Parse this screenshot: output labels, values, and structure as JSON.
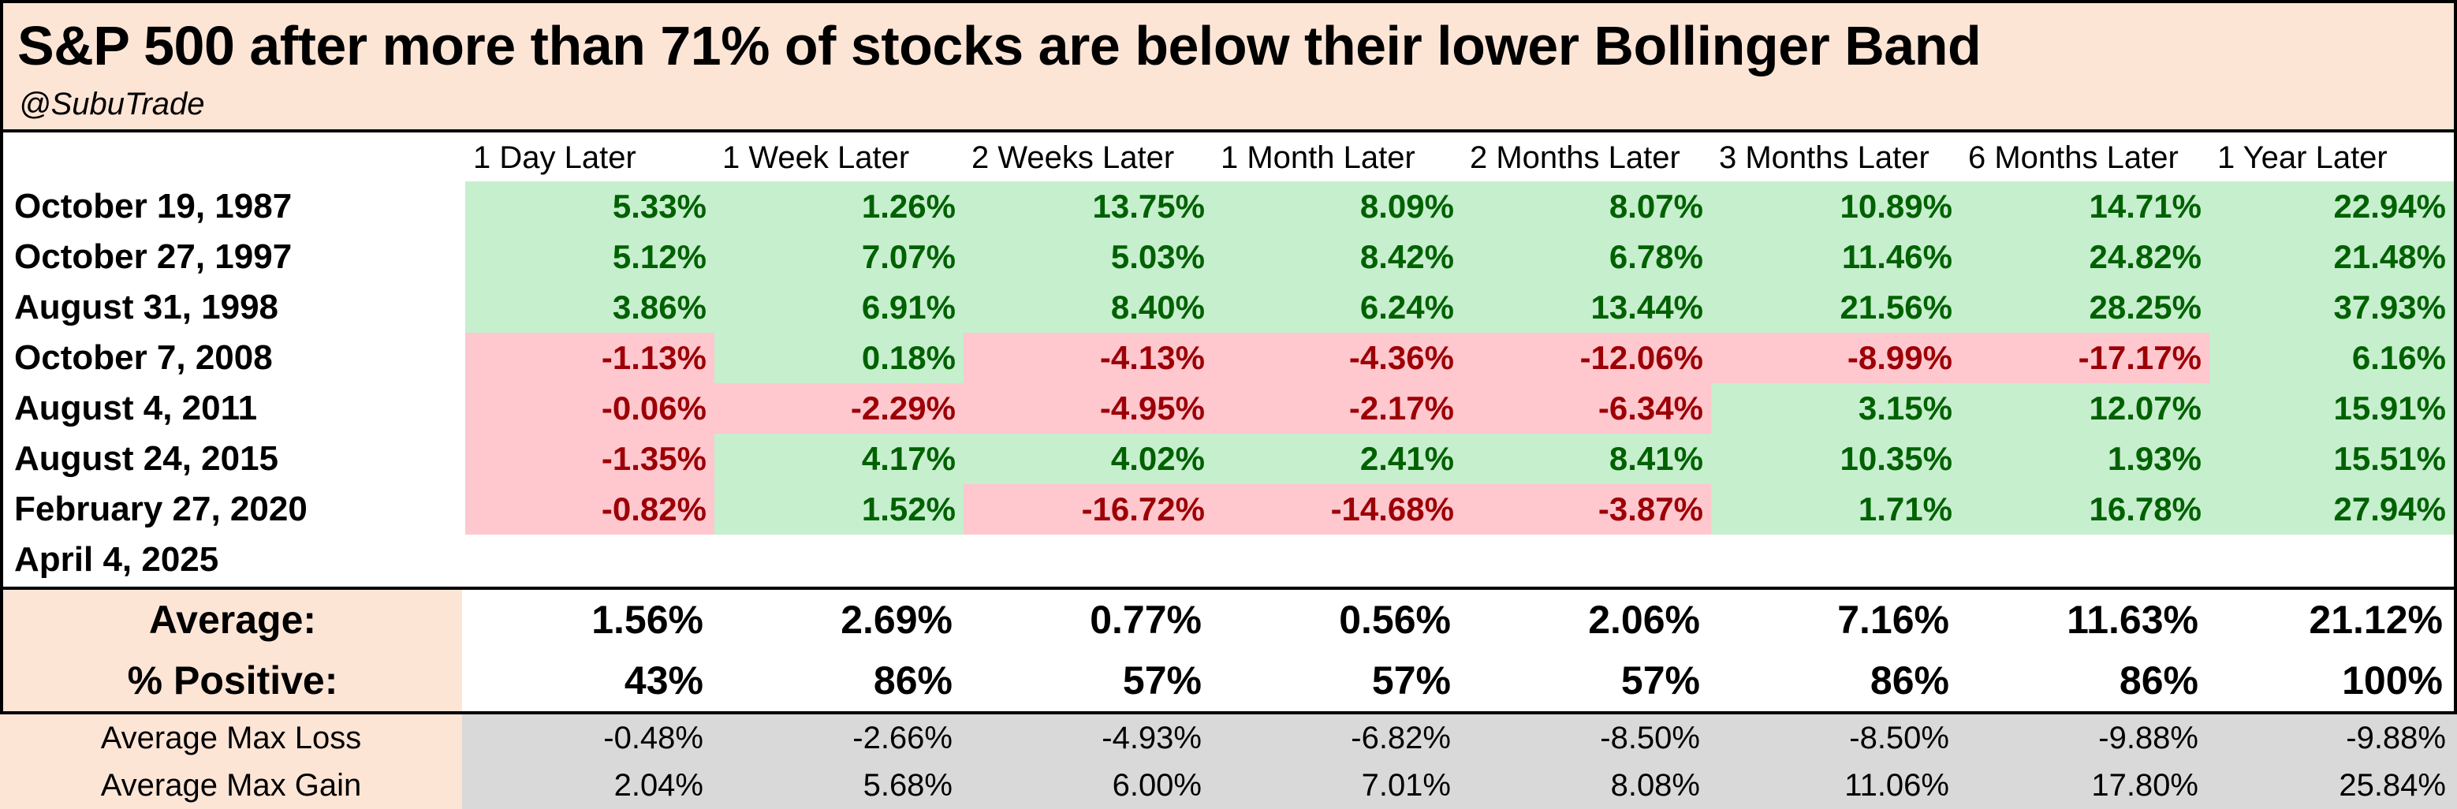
{
  "title": "S&P 500 after more than 71% of stocks are below their lower Bollinger Band",
  "subtitle": "@SubuTrade",
  "chart_data": {
    "type": "table",
    "columns": [
      "1 Day Later",
      "1 Week Later",
      "2 Weeks Later",
      "1 Month Later",
      "2 Months Later",
      "3 Months Later",
      "6 Months Later",
      "1 Year Later"
    ],
    "rows": [
      {
        "date": "October 19, 1987",
        "values": [
          "5.33%",
          "1.26%",
          "13.75%",
          "8.09%",
          "8.07%",
          "10.89%",
          "14.71%",
          "22.94%"
        ]
      },
      {
        "date": "October 27, 1997",
        "values": [
          "5.12%",
          "7.07%",
          "5.03%",
          "8.42%",
          "6.78%",
          "11.46%",
          "24.82%",
          "21.48%"
        ]
      },
      {
        "date": "August 31, 1998",
        "values": [
          "3.86%",
          "6.91%",
          "8.40%",
          "6.24%",
          "13.44%",
          "21.56%",
          "28.25%",
          "37.93%"
        ]
      },
      {
        "date": "October 7, 2008",
        "values": [
          "-1.13%",
          "0.18%",
          "-4.13%",
          "-4.36%",
          "-12.06%",
          "-8.99%",
          "-17.17%",
          "6.16%"
        ]
      },
      {
        "date": "August 4, 2011",
        "values": [
          "-0.06%",
          "-2.29%",
          "-4.95%",
          "-2.17%",
          "-6.34%",
          "3.15%",
          "12.07%",
          "15.91%"
        ]
      },
      {
        "date": "August 24, 2015",
        "values": [
          "-1.35%",
          "4.17%",
          "4.02%",
          "2.41%",
          "8.41%",
          "10.35%",
          "1.93%",
          "15.51%"
        ]
      },
      {
        "date": "February 27, 2020",
        "values": [
          "-0.82%",
          "1.52%",
          "-16.72%",
          "-14.68%",
          "-3.87%",
          "1.71%",
          "16.78%",
          "27.94%"
        ]
      },
      {
        "date": "April 4, 2025",
        "values": [
          "",
          "",
          "",
          "",
          "",
          "",
          "",
          ""
        ]
      }
    ],
    "summary": [
      {
        "label": "Average:",
        "values": [
          "1.56%",
          "2.69%",
          "0.77%",
          "0.56%",
          "2.06%",
          "7.16%",
          "11.63%",
          "21.12%"
        ]
      },
      {
        "label": "% Positive:",
        "values": [
          "43%",
          "86%",
          "57%",
          "57%",
          "57%",
          "86%",
          "86%",
          "100%"
        ]
      }
    ],
    "footer": [
      {
        "label": "Average Max Loss",
        "values": [
          "-0.48%",
          "-2.66%",
          "-4.93%",
          "-6.82%",
          "-8.50%",
          "-8.50%",
          "-9.88%",
          "-9.88%"
        ]
      },
      {
        "label": "Average Max Gain",
        "values": [
          "2.04%",
          "5.68%",
          "6.00%",
          "7.01%",
          "8.08%",
          "11.06%",
          "17.80%",
          "25.84%"
        ]
      }
    ]
  },
  "colors": {
    "positive_bg": "#c6efce",
    "positive_text": "#006100",
    "negative_bg": "#ffc7ce",
    "negative_text": "#9c0006",
    "header_bg": "#fde5d6",
    "footer_bg": "#d9d9d9"
  }
}
